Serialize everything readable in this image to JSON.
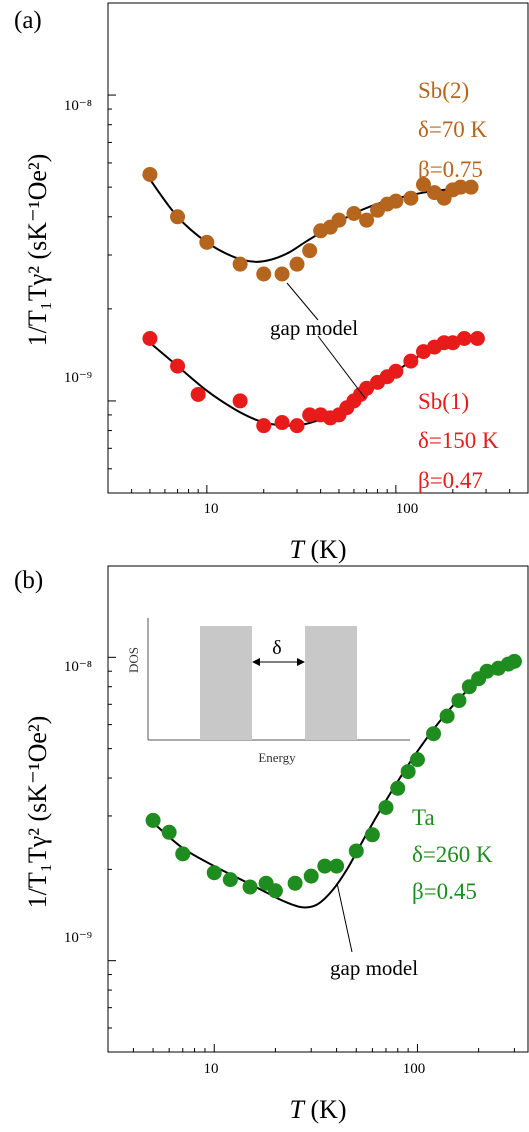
{
  "chart_data": [
    {
      "type": "scatter",
      "panel_label": "(a)",
      "xlabel_italic": "T",
      "xlabel_unit": " (K)",
      "ylabel": "1/T₁Tγ² (sK⁻¹Oe²)",
      "x_scale": "log",
      "y_scale": "log",
      "xlim": [
        3,
        500
      ],
      "ylim": [
        5e-10,
        2e-08
      ],
      "x_ticks": [
        10,
        100
      ],
      "x_tick_labels": [
        "10",
        "100"
      ],
      "y_ticks": [
        1e-09,
        1e-08
      ],
      "y_tick_labels": [
        "10⁻⁹",
        "10⁻⁸"
      ],
      "grid": false,
      "series": [
        {
          "name": "Sb(2)",
          "color": "#b5651d",
          "x": [
            5,
            7,
            10,
            15,
            20,
            25,
            30,
            35,
            40,
            45,
            50,
            60,
            70,
            80,
            90,
            100,
            120,
            140,
            160,
            180,
            200,
            220,
            250
          ],
          "y": [
            5.5e-09,
            4e-09,
            3.3e-09,
            2.8e-09,
            2.6e-09,
            2.6e-09,
            2.8e-09,
            3.1e-09,
            3.6e-09,
            3.7e-09,
            3.9e-09,
            4.1e-09,
            3.9e-09,
            4.2e-09,
            4.4e-09,
            4.5e-09,
            4.6e-09,
            5.1e-09,
            4.8e-09,
            4.6e-09,
            4.9e-09,
            5e-09,
            5e-09
          ]
        },
        {
          "name": "Sb(1)",
          "color": "#e81b1b",
          "x": [
            5,
            7,
            9,
            15,
            20,
            25,
            30,
            35,
            40,
            45,
            50,
            55,
            60,
            65,
            70,
            80,
            90,
            100,
            120,
            140,
            160,
            180,
            200,
            230,
            270
          ],
          "y": [
            1.6e-09,
            1.3e-09,
            1.05e-09,
            1e-09,
            8.3e-10,
            8.5e-10,
            8.3e-10,
            9e-10,
            9e-10,
            8.8e-10,
            9e-10,
            9.5e-10,
            1e-09,
            1.05e-09,
            1.1e-09,
            1.15e-09,
            1.2e-09,
            1.25e-09,
            1.35e-09,
            1.45e-09,
            1.5e-09,
            1.55e-09,
            1.55e-09,
            1.6e-09,
            1.6e-09
          ]
        }
      ],
      "fits": [
        {
          "label": "gap model",
          "x": [
            5,
            7,
            10,
            14,
            18,
            22,
            27,
            33,
            40,
            50,
            60,
            75,
            90,
            110,
            140,
            180,
            250
          ],
          "y": [
            5.3e-09,
            4e-09,
            3.3e-09,
            2.95e-09,
            2.85e-09,
            2.9e-09,
            3.05e-09,
            3.3e-09,
            3.55e-09,
            3.85e-09,
            4.1e-09,
            4.35e-09,
            4.5e-09,
            4.65e-09,
            4.8e-09,
            4.9e-09,
            5e-09
          ]
        },
        {
          "label": "gap model",
          "x": [
            5,
            7,
            10,
            14,
            18,
            22,
            27,
            33,
            40,
            50,
            60,
            75,
            90,
            110,
            140,
            180,
            270
          ],
          "y": [
            1.55e-09,
            1.3e-09,
            1.08e-09,
            9.4e-10,
            8.7e-10,
            8.4e-10,
            8.3e-10,
            8.4e-10,
            8.7e-10,
            9.2e-10,
            1e-09,
            1.1e-09,
            1.2e-09,
            1.3e-09,
            1.43e-09,
            1.52e-09,
            1.6e-09
          ]
        }
      ],
      "annotations": [
        {
          "lines": [
            "Sb(2)",
            "δ=70 K",
            "β=0.75"
          ],
          "color": "#b5651d"
        },
        {
          "lines": [
            "Sb(1)",
            "δ=150 K",
            "β=0.47"
          ],
          "color": "#e81b1b"
        }
      ],
      "model_label": "gap model"
    },
    {
      "type": "scatter",
      "panel_label": "(b)",
      "xlabel_italic": "T",
      "xlabel_unit": " (K)",
      "ylabel": "1/T₁Tγ² (sK⁻¹Oe²)",
      "x_scale": "log",
      "y_scale": "log",
      "xlim": [
        3,
        350
      ],
      "ylim": [
        5e-10,
        2e-08
      ],
      "x_ticks": [
        10,
        100
      ],
      "x_tick_labels": [
        "10",
        "100"
      ],
      "y_ticks": [
        1e-09,
        1e-08
      ],
      "y_tick_labels": [
        "10⁻⁹",
        "10⁻⁸"
      ],
      "grid": false,
      "series": [
        {
          "name": "Ta",
          "color": "#1e8c1e",
          "x": [
            5,
            6,
            7,
            10,
            12,
            15,
            18,
            20,
            25,
            30,
            35,
            40,
            50,
            60,
            70,
            80,
            90,
            100,
            120,
            140,
            160,
            180,
            200,
            220,
            250,
            280,
            300
          ],
          "y": [
            2.9e-09,
            2.65e-09,
            2.25e-09,
            1.95e-09,
            1.85e-09,
            1.75e-09,
            1.8e-09,
            1.7e-09,
            1.8e-09,
            1.9e-09,
            2.05e-09,
            2.05e-09,
            2.3e-09,
            2.6e-09,
            3.2e-09,
            3.7e-09,
            4.2e-09,
            4.6e-09,
            5.6e-09,
            6.4e-09,
            7.2e-09,
            8e-09,
            8.5e-09,
            9e-09,
            9.2e-09,
            9.5e-09,
            9.7e-09
          ]
        }
      ],
      "fits": [
        {
          "label": "gap model",
          "x": [
            5,
            7,
            10,
            14,
            18,
            22,
            27,
            32,
            38,
            45,
            55,
            65,
            80,
            100,
            130,
            170,
            220,
            300
          ],
          "y": [
            2.85e-09,
            2.35e-09,
            2.05e-09,
            1.83e-09,
            1.68e-09,
            1.57e-09,
            1.5e-09,
            1.53e-09,
            1.7e-09,
            2e-09,
            2.55e-09,
            3.1e-09,
            3.9e-09,
            4.9e-09,
            6.2e-09,
            7.6e-09,
            8.8e-09,
            9.8e-09
          ]
        }
      ],
      "annotations": [
        {
          "lines": [
            "Ta",
            "δ=260 K",
            "β=0.45"
          ],
          "color": "#1e8c1e"
        }
      ],
      "model_label": "gap model",
      "inset": {
        "ylabel": "DOS",
        "xlabel": "Energy",
        "gap_label": "δ",
        "band_color": "#c8c8c8"
      }
    }
  ]
}
